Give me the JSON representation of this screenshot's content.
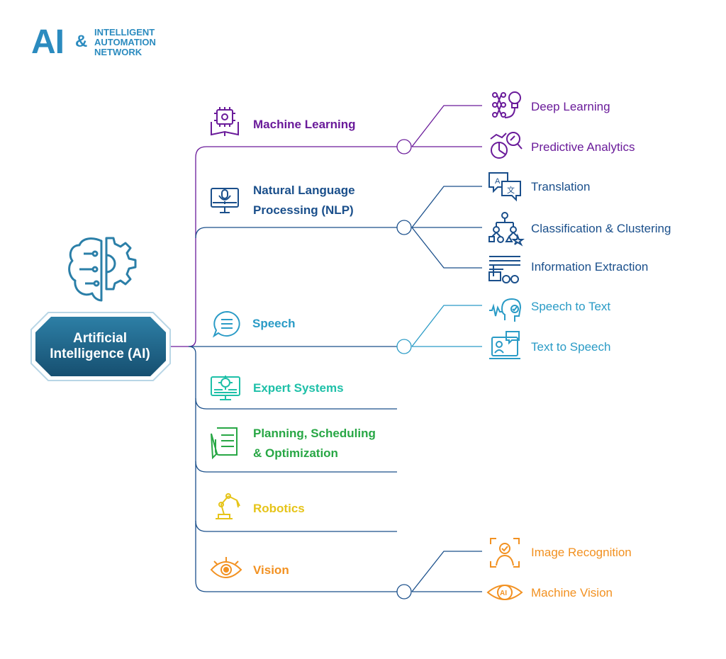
{
  "logo": {
    "ai": "AI",
    "amp": "&",
    "line1": "INTELLIGENT",
    "line2": "AUTOMATION",
    "line3": "NETWORK"
  },
  "root": {
    "line1": "Artificial",
    "line2": "Intelligence (AI)",
    "icon": "brain-gear-icon"
  },
  "categories": [
    {
      "id": "ml",
      "label": "Machine Learning",
      "icon": "ml-book-chip-icon",
      "color": "#6a1b9a"
    },
    {
      "id": "nlp",
      "line1": "Natural Language",
      "line2": "Processing (NLP)",
      "icon": "monitor-mic-icon",
      "color": "#1a4f8b"
    },
    {
      "id": "speech",
      "label": "Speech",
      "icon": "speech-bubble-icon",
      "color": "#2a9bc6"
    },
    {
      "id": "expert",
      "label": "Expert Systems",
      "icon": "monitor-gear-icon",
      "color": "#1ec0a8"
    },
    {
      "id": "planning",
      "line1": "Planning, Scheduling",
      "line2": "& Optimization",
      "icon": "checklist-pen-icon",
      "color": "#28a745"
    },
    {
      "id": "robotics",
      "label": "Robotics",
      "icon": "robot-arm-icon",
      "color": "#e6c419"
    },
    {
      "id": "vision",
      "label": "Vision",
      "icon": "eye-icon",
      "color": "#f29121"
    }
  ],
  "leaves": {
    "ml": [
      {
        "label": "Deep Learning",
        "icon": "neural-network-bulb-icon"
      },
      {
        "label": "Predictive Analytics",
        "icon": "analytics-magnifier-icon"
      }
    ],
    "nlp": [
      {
        "label": "Translation",
        "icon": "translation-icon"
      },
      {
        "label": "Classification & Clustering",
        "icon": "hierarchy-tree-icon"
      },
      {
        "label": "Information Extraction",
        "icon": "data-extraction-icon"
      }
    ],
    "speech": [
      {
        "label": "Speech to Text",
        "icon": "head-voice-icon"
      },
      {
        "label": "Text to Speech",
        "icon": "laptop-speech-icon"
      }
    ],
    "vision": [
      {
        "label": "Image Recognition",
        "icon": "face-scan-icon"
      },
      {
        "label": "Machine Vision",
        "icon": "ai-eye-icon"
      }
    ]
  }
}
